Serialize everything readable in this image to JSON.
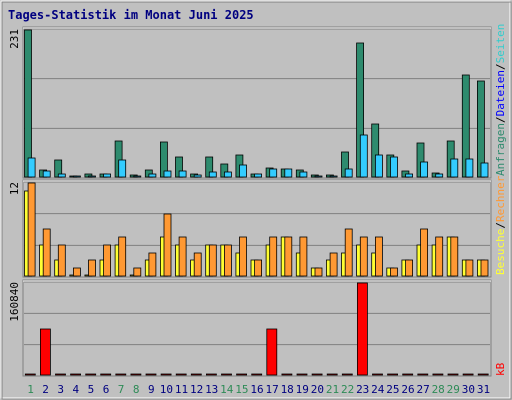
{
  "chart_data": {
    "type": "bar",
    "title": "Tages-Statistik im Monat Juni 2025",
    "x": [
      "1",
      "2",
      "3",
      "4",
      "5",
      "6",
      "7",
      "8",
      "9",
      "10",
      "11",
      "12",
      "13",
      "14",
      "15",
      "16",
      "17",
      "18",
      "19",
      "20",
      "21",
      "22",
      "23",
      "24",
      "25",
      "26",
      "27",
      "28",
      "29",
      "30",
      "31"
    ],
    "weekend_days": [
      "1",
      "7",
      "8",
      "14",
      "15",
      "21",
      "22",
      "28",
      "29"
    ],
    "panels": [
      {
        "name": "requests",
        "ymax_label": "231",
        "ymax": 231,
        "grid": true,
        "series": [
          {
            "name": "Anfragen",
            "color": "#2e8b6e",
            "values": [
              231,
              11,
              26,
              2,
              5,
              5,
              56,
              3,
              11,
              55,
              32,
              5,
              32,
              20,
              34,
              5,
              14,
              13,
              11,
              3,
              3,
              40,
              210,
              84,
              34,
              9,
              54,
              7,
              57,
              161,
              151
            ]
          },
          {
            "name": "Dateien",
            "color": "#33ccff",
            "values": [
              30,
              10,
              4,
              1,
              1,
              4,
              26,
              1,
              4,
              10,
              10,
              3,
              8,
              8,
              19,
              4,
              12,
              12,
              8,
              2,
              2,
              12,
              66,
              35,
              31,
              5,
              24,
              5,
              29,
              28,
              22
            ]
          },
          {
            "name": "Seiten",
            "color": "#33cccc",
            "values": [
              0,
              0,
              0,
              0,
              0,
              0,
              0,
              0,
              0,
              0,
              0,
              0,
              0,
              0,
              0,
              0,
              0,
              0,
              0,
              0,
              0,
              0,
              0,
              0,
              0,
              0,
              0,
              0,
              0,
              0,
              0
            ]
          }
        ]
      },
      {
        "name": "visits",
        "ymax_label": "12",
        "ymax": 12,
        "grid": true,
        "series": [
          {
            "name": "Besuche",
            "color": "#ffff33",
            "values": [
              11,
              4,
              2,
              0,
              0,
              2,
              4,
              0,
              2,
              5,
              4,
              2,
              4,
              4,
              3,
              2,
              4,
              5,
              3,
              1,
              2,
              3,
              4,
              3,
              1,
              2,
              4,
              4,
              5,
              2,
              2
            ]
          },
          {
            "name": "Rechner",
            "color": "#ff9933",
            "values": [
              12,
              6,
              4,
              1,
              2,
              4,
              5,
              1,
              3,
              8,
              5,
              3,
              4,
              4,
              5,
              2,
              5,
              5,
              5,
              1,
              3,
              6,
              5,
              5,
              1,
              2,
              6,
              5,
              5,
              2,
              2
            ]
          }
        ]
      },
      {
        "name": "kbytes",
        "ymax_label": "160840",
        "ymax": 160840,
        "grid": true,
        "series": [
          {
            "name": "kB",
            "color": "#ff0000",
            "values": [
              0,
              80000,
              0,
              0,
              0,
              0,
              0,
              0,
              0,
              0,
              0,
              0,
              0,
              0,
              0,
              0,
              80000,
              0,
              0,
              0,
              0,
              0,
              160840,
              0,
              0,
              0,
              0,
              0,
              0,
              0,
              0
            ]
          }
        ]
      }
    ],
    "legend": {
      "right_top": [
        "Anfragen",
        "/",
        "Dateien",
        "/",
        "Seiten"
      ],
      "right_middle": [
        "Besuche",
        "/",
        "Rechner"
      ],
      "right_bottom": [
        "kB"
      ]
    }
  },
  "colors": {
    "title": "#000080",
    "weekend_label": "#2e8b57",
    "weekday_label": "#000080",
    "plot_bg": "#c0c0c0",
    "frame_bg": "#c0c0c0",
    "grid": "#808080"
  }
}
